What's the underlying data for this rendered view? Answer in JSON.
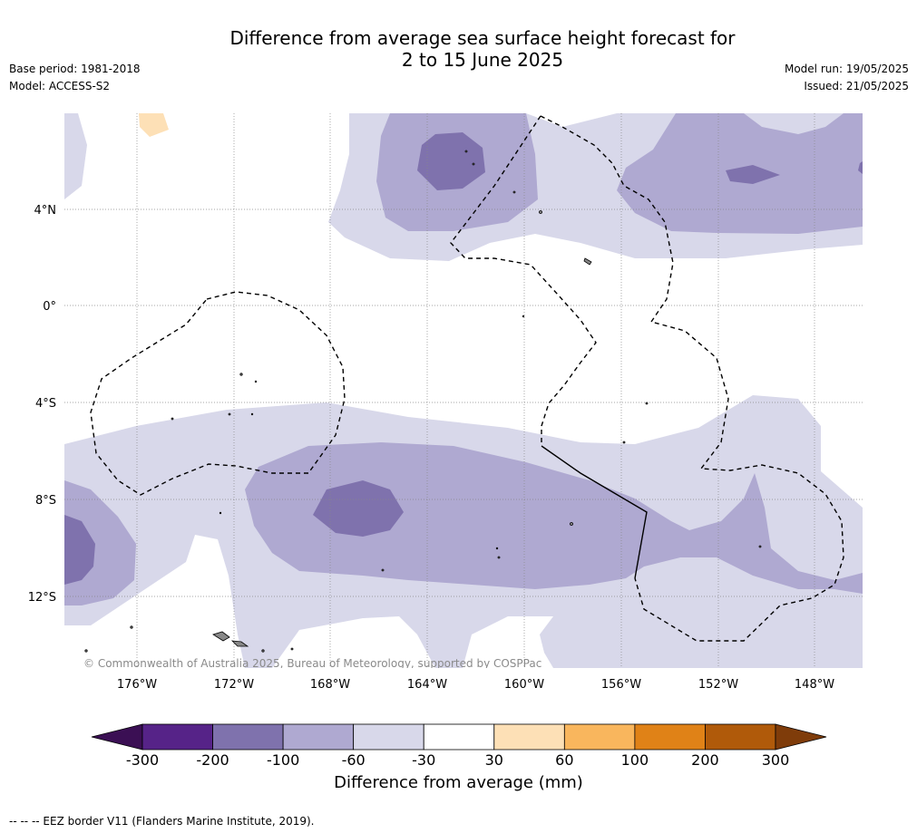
{
  "header": {
    "title_line1": "Difference from average sea surface height forecast for",
    "title_line2": "2 to 15 June 2025",
    "base_period": "Base period: 1981-2018",
    "model": "Model: ACCESS-S2",
    "model_run": "Model run: 19/05/2025",
    "issued": "Issued: 21/05/2025"
  },
  "map": {
    "lat_labels": [
      "4°N",
      "0°",
      "4°S",
      "8°S",
      "12°S"
    ],
    "lon_labels": [
      "176°W",
      "172°W",
      "168°W",
      "164°W",
      "160°W",
      "156°W",
      "152°W",
      "148°W"
    ],
    "copyright": "© Commonwealth of Australia 2025, Bureau of Meteorology, supported by COSPPac"
  },
  "colorbar": {
    "ticks": [
      "-300",
      "-200",
      "-100",
      "-60",
      "-30",
      "30",
      "60",
      "100",
      "200",
      "300"
    ],
    "colors": [
      "#3b0f54",
      "#562388",
      "#7f72ad",
      "#afa9d1",
      "#d8d8ea",
      "#ffffff",
      "#fde0b6",
      "#f9b65d",
      "#e08217",
      "#b05a0a",
      "#7f3c0a"
    ],
    "title": "Difference from average (mm)"
  },
  "footer": {
    "note": "--  --  -- EEZ border V11 (Flanders Marine Institute, 2019)."
  }
}
